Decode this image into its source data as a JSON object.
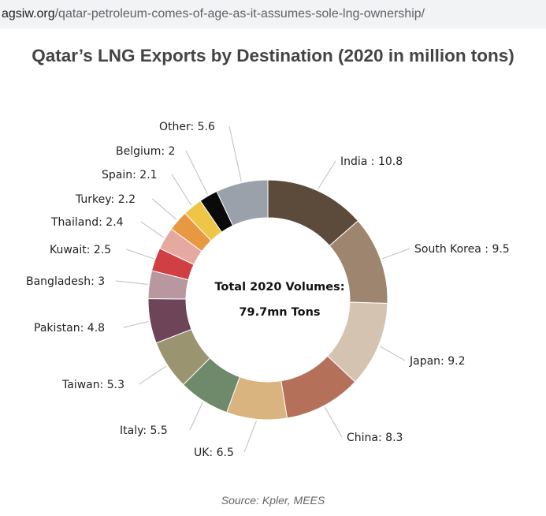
{
  "browser": {
    "url_domain": "agsiw.org",
    "url_path": "/qatar-petroleum-comes-of-age-as-it-assumes-sole-lng-ownership/"
  },
  "title": "Qatar’s LNG Exports by Destination (2020 in million tons)",
  "source": "Source: Kpler, MEES",
  "chart_data": {
    "type": "pie",
    "title": "Qatar’s LNG Exports by Destination (2020 in million tons)",
    "center_text": [
      "Total 2020 Volumes:",
      "79.7mn Tons"
    ],
    "slices": [
      {
        "name": "India",
        "label": "India : 10.8",
        "value": 10.8,
        "color": "#5c4a3b"
      },
      {
        "name": "South Korea",
        "label": "South Korea : 9.5",
        "value": 9.5,
        "color": "#9e8570"
      },
      {
        "name": "Japan",
        "label": "Japan: 9.2",
        "value": 9.2,
        "color": "#d5c3b2"
      },
      {
        "name": "China",
        "label": "China: 8.3",
        "value": 8.3,
        "color": "#b5705a"
      },
      {
        "name": "UK",
        "label": "UK: 6.5",
        "value": 6.5,
        "color": "#d9b47f"
      },
      {
        "name": "Italy",
        "label": "Italy: 5.5",
        "value": 5.5,
        "color": "#6e8a6a"
      },
      {
        "name": "Taiwan",
        "label": "Taiwan: 5.3",
        "value": 5.3,
        "color": "#9a9470"
      },
      {
        "name": "Pakistan",
        "label": "Pakistan: 4.8",
        "value": 4.8,
        "color": "#6e4459"
      },
      {
        "name": "Bangladesh",
        "label": "Bangladesh: 3",
        "value": 3,
        "color": "#b9979f"
      },
      {
        "name": "Kuwait",
        "label": "Kuwait: 2.5",
        "value": 2.5,
        "color": "#cf3f44"
      },
      {
        "name": "Thailand",
        "label": "Thailand: 2.4",
        "value": 2.4,
        "color": "#e6a9a0"
      },
      {
        "name": "Turkey",
        "label": "Turkey: 2.2",
        "value": 2.2,
        "color": "#e99842"
      },
      {
        "name": "Spain",
        "label": "Spain: 2.1",
        "value": 2.1,
        "color": "#efc548"
      },
      {
        "name": "Belgium",
        "label": "Belgium: 2",
        "value": 2,
        "color": "#0a0a0a"
      },
      {
        "name": "Other",
        "label": "Other: 5.6",
        "value": 5.6,
        "color": "#9aa1aa"
      }
    ]
  }
}
